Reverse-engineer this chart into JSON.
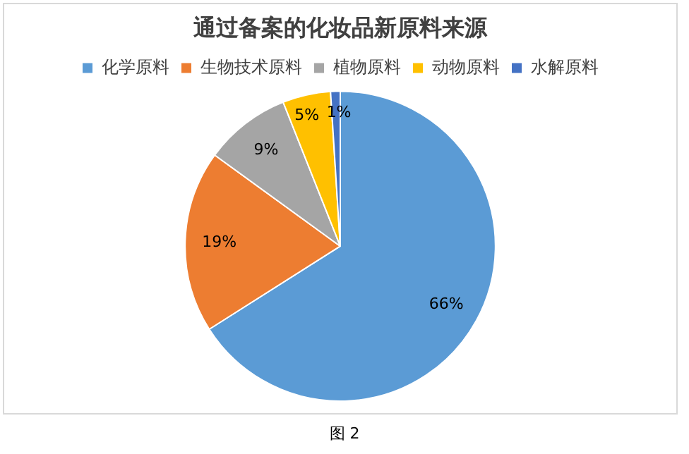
{
  "chart_data": {
    "type": "pie",
    "title": "通过备案的化妆品新原料来源",
    "categories": [
      "化学原料",
      "生物技术原料",
      "植物原料",
      "动物原料",
      "水解原料"
    ],
    "values": [
      66,
      19,
      9,
      5,
      1
    ],
    "colors": [
      "#5b9bd5",
      "#ed7d31",
      "#a5a5a5",
      "#ffc000",
      "#4472c4"
    ],
    "value_labels": [
      "66%",
      "19%",
      "9%",
      "5%",
      "1%"
    ],
    "legend": "top",
    "annotations": [
      "图 2"
    ]
  }
}
